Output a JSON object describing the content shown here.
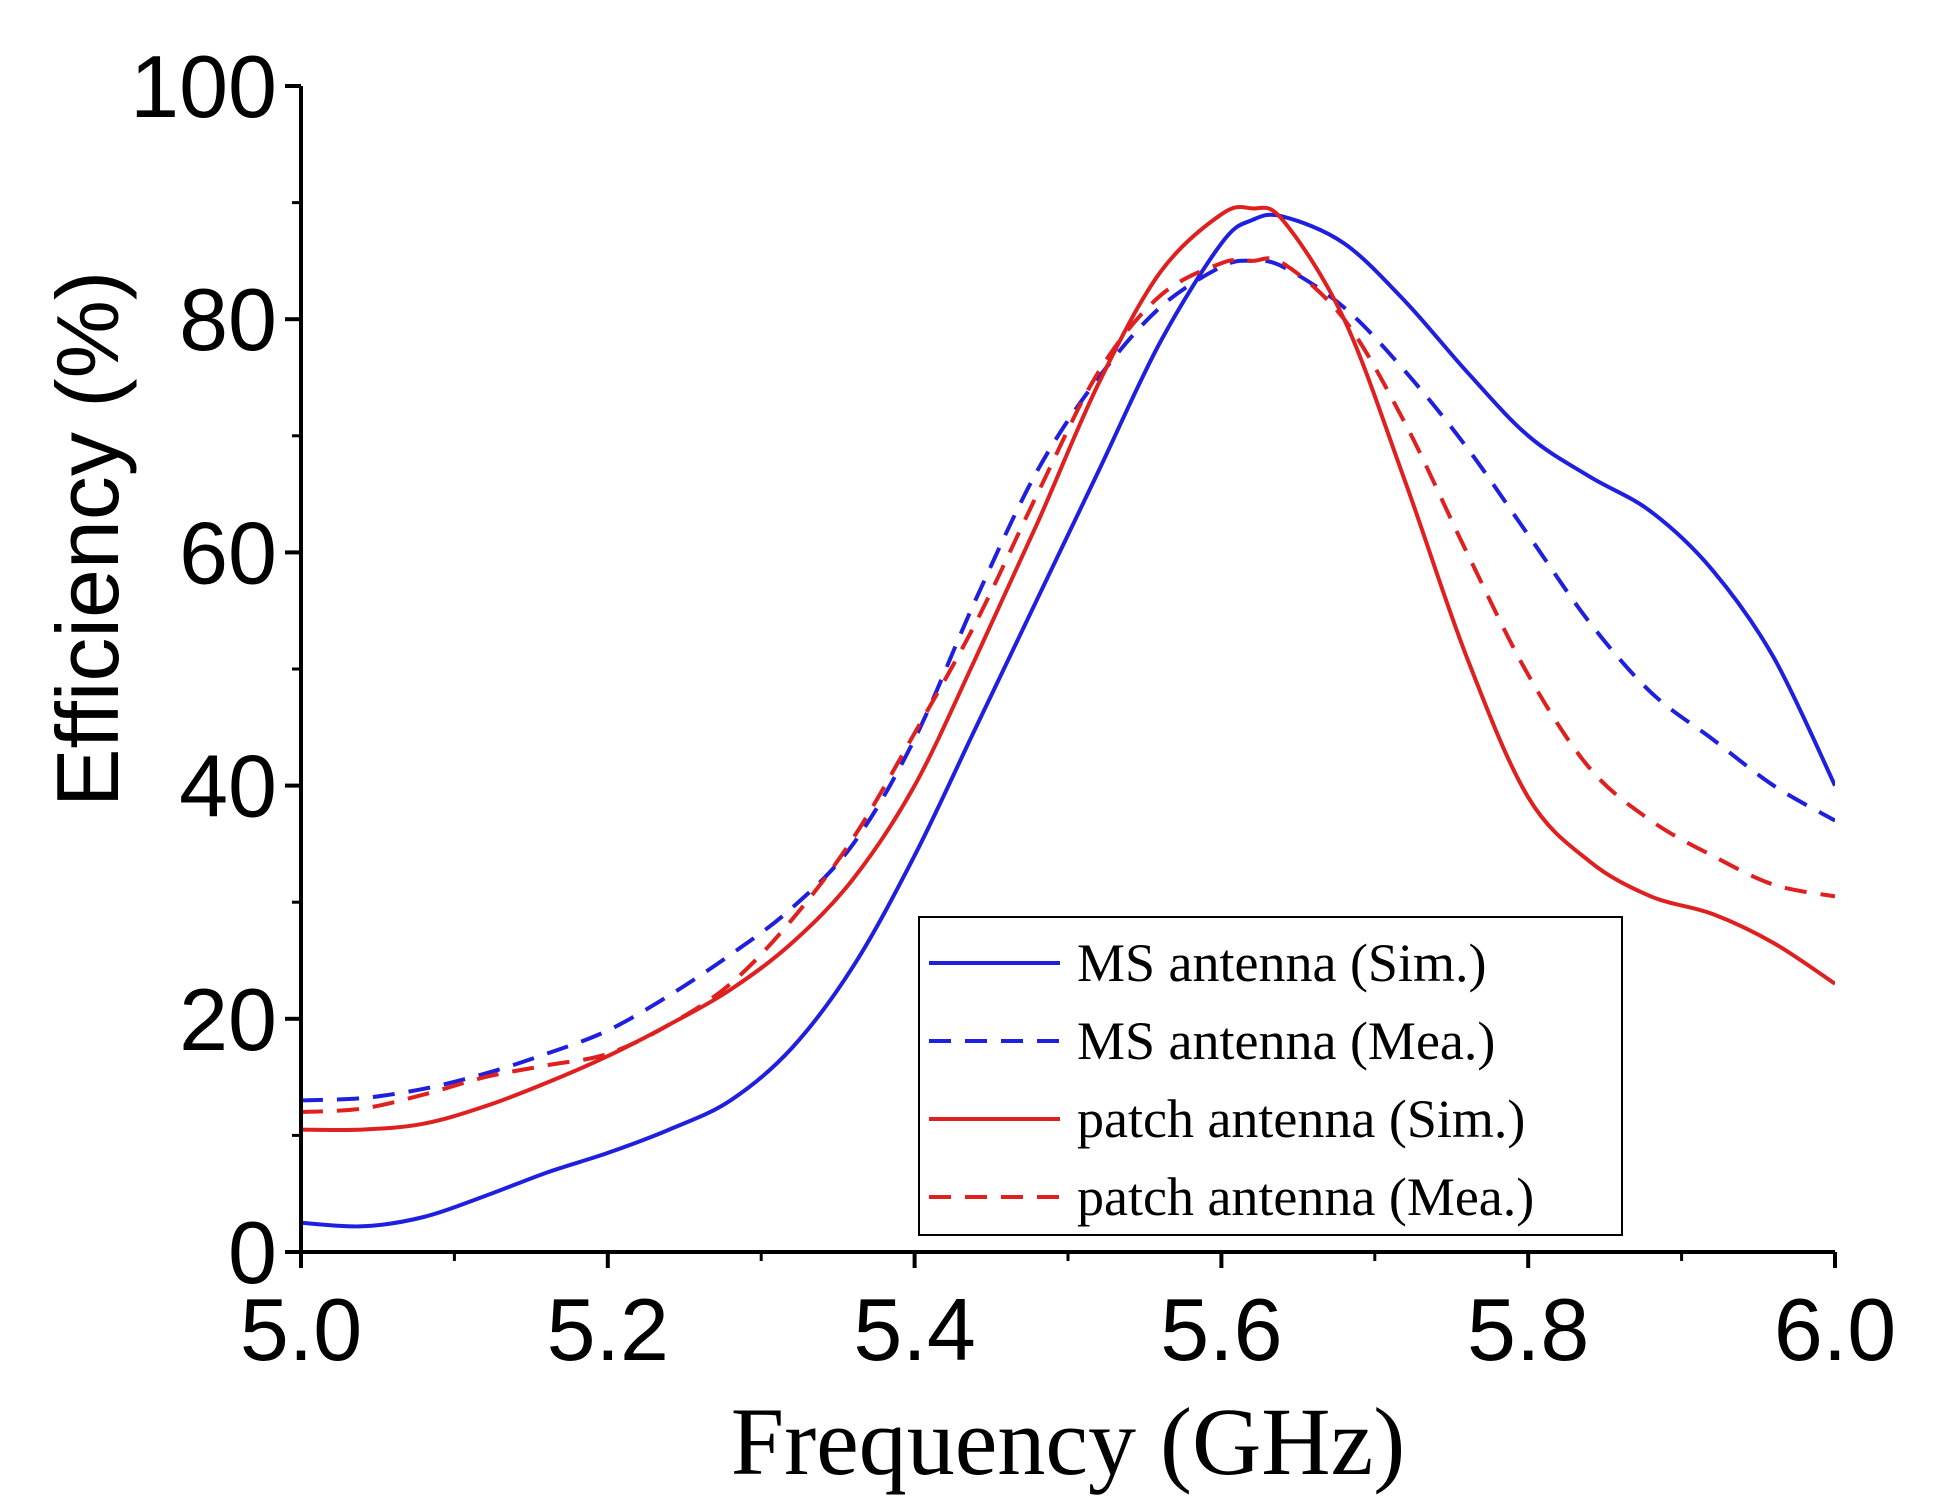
{
  "chart_data": {
    "type": "line",
    "title": "",
    "xlabel": "Frequency (GHz)",
    "ylabel": "Efficiency (%)",
    "xlim": [
      5.0,
      6.0
    ],
    "ylim": [
      0,
      100
    ],
    "xticks": [
      "5.0",
      "5.2",
      "5.4",
      "5.6",
      "5.8",
      "6.0"
    ],
    "yticks": [
      "0",
      "20",
      "40",
      "60",
      "80",
      "100"
    ],
    "grid": false,
    "legend_position": "bottom-right",
    "x": [
      5.0,
      5.04,
      5.08,
      5.12,
      5.16,
      5.2,
      5.24,
      5.28,
      5.32,
      5.36,
      5.4,
      5.44,
      5.48,
      5.52,
      5.56,
      5.6,
      5.62,
      5.64,
      5.68,
      5.72,
      5.76,
      5.8,
      5.84,
      5.88,
      5.92,
      5.96,
      6.0
    ],
    "series": [
      {
        "name": "MS antenna (Sim.)",
        "color": "#1f1fe0",
        "dash": "solid",
        "values": [
          2.5,
          2.2,
          3.0,
          4.8,
          6.8,
          8.5,
          10.5,
          13.0,
          17.5,
          24.5,
          34.0,
          45.0,
          56.0,
          67.0,
          78.0,
          86.5,
          88.5,
          88.8,
          86.5,
          81.5,
          75.5,
          70.0,
          66.5,
          63.5,
          58.5,
          51.0,
          40.0
        ]
      },
      {
        "name": "MS antenna (Mea.)",
        "color": "#1f1fe0",
        "dash": "dashed",
        "values": [
          13.0,
          13.2,
          14.0,
          15.3,
          17.0,
          19.0,
          22.0,
          25.5,
          29.5,
          35.0,
          44.0,
          56.0,
          67.0,
          75.0,
          81.0,
          84.5,
          85.0,
          84.5,
          81.0,
          75.5,
          69.0,
          61.5,
          54.0,
          48.0,
          44.0,
          40.0,
          37.0
        ]
      },
      {
        "name": "patch antenna (Sim.)",
        "color": "#e01f1f",
        "dash": "solid",
        "values": [
          10.5,
          10.5,
          11.0,
          12.5,
          14.5,
          16.8,
          19.5,
          22.5,
          26.5,
          32.0,
          40.0,
          51.0,
          62.5,
          74.5,
          84.0,
          89.0,
          89.5,
          88.5,
          80.0,
          66.0,
          51.0,
          39.0,
          33.5,
          30.5,
          29.0,
          26.5,
          23.0
        ]
      },
      {
        "name": "patch antenna (Mea.)",
        "color": "#e01f1f",
        "dash": "dashed",
        "values": [
          12.0,
          12.3,
          13.5,
          15.0,
          16.0,
          17.0,
          19.5,
          23.0,
          28.5,
          35.5,
          44.5,
          54.0,
          65.0,
          75.5,
          82.0,
          84.8,
          85.0,
          84.8,
          80.0,
          71.0,
          60.0,
          49.5,
          41.5,
          37.0,
          34.0,
          31.5,
          30.5
        ]
      }
    ]
  }
}
